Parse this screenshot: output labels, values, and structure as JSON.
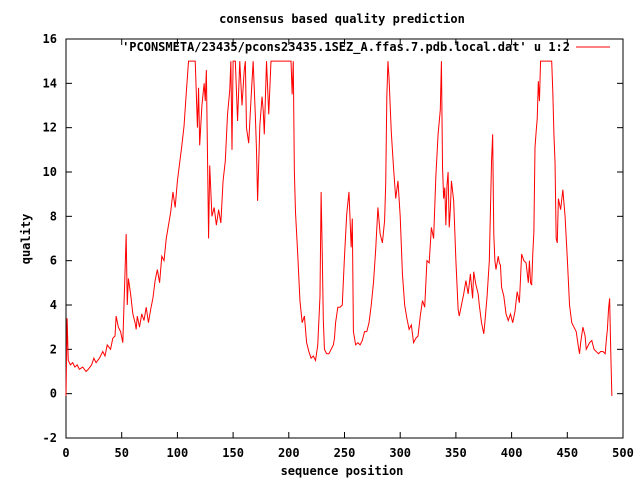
{
  "chart_data": {
    "type": "line",
    "title": "consensus based quality prediction",
    "xlabel": "sequence position",
    "ylabel": "quality",
    "xlim": [
      0,
      500
    ],
    "ylim": [
      -2,
      16
    ],
    "xticks": [
      "0",
      "50",
      "100",
      "150",
      "200",
      "250",
      "300",
      "350",
      "400",
      "450",
      "500"
    ],
    "yticks": [
      "-2",
      "0",
      "2",
      "4",
      "6",
      "8",
      "10",
      "12",
      "14",
      "16"
    ],
    "grid": false,
    "legend_position": "top-right",
    "series": [
      {
        "name": "'PCONSMETA/23435/pcons23435.1SEZ_A.ffas.7.pdb.local.dat' u 1:2",
        "color": "#ff0000",
        "points": [
          [
            0,
            -0.1
          ],
          [
            1,
            3.4
          ],
          [
            2,
            1.5
          ],
          [
            4,
            1.3
          ],
          [
            6,
            1.4
          ],
          [
            8,
            1.2
          ],
          [
            10,
            1.3
          ],
          [
            12,
            1.1
          ],
          [
            15,
            1.2
          ],
          [
            18,
            1.0
          ],
          [
            20,
            1.1
          ],
          [
            23,
            1.3
          ],
          [
            25,
            1.6
          ],
          [
            27,
            1.4
          ],
          [
            30,
            1.6
          ],
          [
            33,
            1.9
          ],
          [
            35,
            1.7
          ],
          [
            37,
            2.2
          ],
          [
            40,
            2.0
          ],
          [
            42,
            2.5
          ],
          [
            44,
            2.6
          ],
          [
            45,
            3.5
          ],
          [
            47,
            3.0
          ],
          [
            49,
            2.8
          ],
          [
            51,
            2.3
          ],
          [
            53,
            5.5
          ],
          [
            54,
            7.2
          ],
          [
            55,
            4.0
          ],
          [
            56,
            5.2
          ],
          [
            58,
            4.5
          ],
          [
            60,
            3.6
          ],
          [
            62,
            3.2
          ],
          [
            63,
            2.9
          ],
          [
            64,
            3.5
          ],
          [
            66,
            3.0
          ],
          [
            68,
            3.6
          ],
          [
            70,
            3.3
          ],
          [
            72,
            3.9
          ],
          [
            74,
            3.2
          ],
          [
            76,
            3.8
          ],
          [
            78,
            4.3
          ],
          [
            80,
            5.1
          ],
          [
            82,
            5.6
          ],
          [
            84,
            5.0
          ],
          [
            86,
            6.2
          ],
          [
            88,
            6.0
          ],
          [
            90,
            7.0
          ],
          [
            92,
            7.6
          ],
          [
            94,
            8.2
          ],
          [
            96,
            9.1
          ],
          [
            98,
            8.4
          ],
          [
            100,
            9.6
          ],
          [
            102,
            10.4
          ],
          [
            104,
            11.2
          ],
          [
            106,
            12.1
          ],
          [
            108,
            13.6
          ],
          [
            110,
            15.0
          ],
          [
            112,
            15.0
          ],
          [
            114,
            15.0
          ],
          [
            116,
            15.0
          ],
          [
            118,
            12.0
          ],
          [
            119,
            13.8
          ],
          [
            120,
            11.2
          ],
          [
            122,
            13.0
          ],
          [
            124,
            14.0
          ],
          [
            125,
            13.2
          ],
          [
            126,
            14.6
          ],
          [
            128,
            7.0
          ],
          [
            129,
            10.3
          ],
          [
            131,
            8.0
          ],
          [
            133,
            8.4
          ],
          [
            135,
            7.6
          ],
          [
            137,
            8.3
          ],
          [
            139,
            7.7
          ],
          [
            141,
            9.6
          ],
          [
            143,
            10.5
          ],
          [
            145,
            12.6
          ],
          [
            147,
            13.7
          ],
          [
            148,
            15.0
          ],
          [
            149,
            11.0
          ],
          [
            150,
            15.0
          ],
          [
            152,
            15.0
          ],
          [
            154,
            12.3
          ],
          [
            156,
            15.0
          ],
          [
            158,
            13.0
          ],
          [
            160,
            14.6
          ],
          [
            161,
            15.0
          ],
          [
            162,
            12.0
          ],
          [
            164,
            11.3
          ],
          [
            166,
            13.2
          ],
          [
            168,
            15.0
          ],
          [
            170,
            12.5
          ],
          [
            171,
            11.0
          ],
          [
            172,
            8.7
          ],
          [
            174,
            12.1
          ],
          [
            176,
            13.4
          ],
          [
            177,
            12.8
          ],
          [
            178,
            11.7
          ],
          [
            180,
            15.0
          ],
          [
            182,
            12.6
          ],
          [
            184,
            15.0
          ],
          [
            186,
            15.0
          ],
          [
            188,
            15.0
          ],
          [
            190,
            15.0
          ],
          [
            192,
            15.0
          ],
          [
            194,
            15.0
          ],
          [
            196,
            15.0
          ],
          [
            198,
            15.0
          ],
          [
            200,
            15.0
          ],
          [
            202,
            15.0
          ],
          [
            203,
            13.5
          ],
          [
            204,
            15.0
          ],
          [
            205,
            10.0
          ],
          [
            206,
            8.2
          ],
          [
            208,
            6.3
          ],
          [
            210,
            4.2
          ],
          [
            212,
            3.2
          ],
          [
            214,
            3.5
          ],
          [
            216,
            2.3
          ],
          [
            218,
            1.9
          ],
          [
            220,
            1.6
          ],
          [
            222,
            1.7
          ],
          [
            224,
            1.5
          ],
          [
            226,
            2.2
          ],
          [
            228,
            4.4
          ],
          [
            229,
            9.1
          ],
          [
            230,
            6.4
          ],
          [
            231,
            3.3
          ],
          [
            232,
            2.0
          ],
          [
            234,
            1.8
          ],
          [
            236,
            1.8
          ],
          [
            238,
            2.0
          ],
          [
            240,
            2.2
          ],
          [
            241,
            2.5
          ],
          [
            242,
            3.2
          ],
          [
            244,
            3.9
          ],
          [
            246,
            3.9
          ],
          [
            248,
            4.0
          ],
          [
            250,
            6.2
          ],
          [
            252,
            8.1
          ],
          [
            254,
            9.1
          ],
          [
            256,
            6.6
          ],
          [
            257,
            7.9
          ],
          [
            258,
            2.8
          ],
          [
            260,
            2.2
          ],
          [
            262,
            2.3
          ],
          [
            264,
            2.2
          ],
          [
            266,
            2.4
          ],
          [
            268,
            2.8
          ],
          [
            270,
            2.8
          ],
          [
            272,
            3.2
          ],
          [
            274,
            4.0
          ],
          [
            276,
            5.0
          ],
          [
            278,
            6.5
          ],
          [
            280,
            8.4
          ],
          [
            282,
            7.2
          ],
          [
            284,
            6.8
          ],
          [
            286,
            7.8
          ],
          [
            287,
            9.5
          ],
          [
            288,
            13.4
          ],
          [
            289,
            15.0
          ],
          [
            290,
            14.2
          ],
          [
            292,
            11.8
          ],
          [
            294,
            10.2
          ],
          [
            296,
            8.8
          ],
          [
            298,
            9.6
          ],
          [
            300,
            8.0
          ],
          [
            302,
            5.4
          ],
          [
            304,
            4.0
          ],
          [
            306,
            3.4
          ],
          [
            308,
            2.9
          ],
          [
            310,
            3.1
          ],
          [
            312,
            2.3
          ],
          [
            314,
            2.5
          ],
          [
            316,
            2.6
          ],
          [
            318,
            3.5
          ],
          [
            320,
            4.2
          ],
          [
            322,
            3.9
          ],
          [
            324,
            6.0
          ],
          [
            326,
            5.9
          ],
          [
            328,
            7.5
          ],
          [
            330,
            7.0
          ],
          [
            332,
            9.8
          ],
          [
            334,
            11.7
          ],
          [
            336,
            12.8
          ],
          [
            337,
            15.0
          ],
          [
            338,
            10.2
          ],
          [
            339,
            8.8
          ],
          [
            340,
            9.3
          ],
          [
            341,
            7.6
          ],
          [
            342,
            9.4
          ],
          [
            343,
            10.0
          ],
          [
            344,
            7.5
          ],
          [
            345,
            8.3
          ],
          [
            346,
            9.6
          ],
          [
            348,
            8.7
          ],
          [
            350,
            6.0
          ],
          [
            352,
            3.8
          ],
          [
            353,
            3.5
          ],
          [
            355,
            4.0
          ],
          [
            357,
            4.5
          ],
          [
            359,
            5.1
          ],
          [
            361,
            4.5
          ],
          [
            363,
            5.4
          ],
          [
            365,
            4.3
          ],
          [
            366,
            5.5
          ],
          [
            368,
            4.9
          ],
          [
            370,
            4.5
          ],
          [
            371,
            4.0
          ],
          [
            373,
            3.2
          ],
          [
            375,
            2.7
          ],
          [
            376,
            3.2
          ],
          [
            378,
            4.4
          ],
          [
            380,
            6.0
          ],
          [
            382,
            10.5
          ],
          [
            383,
            11.7
          ],
          [
            384,
            7.2
          ],
          [
            385,
            6.0
          ],
          [
            386,
            5.6
          ],
          [
            388,
            6.2
          ],
          [
            389,
            5.9
          ],
          [
            390,
            5.8
          ],
          [
            391,
            4.8
          ],
          [
            393,
            4.4
          ],
          [
            395,
            3.6
          ],
          [
            397,
            3.3
          ],
          [
            399,
            3.6
          ],
          [
            401,
            3.2
          ],
          [
            403,
            3.7
          ],
          [
            405,
            4.6
          ],
          [
            407,
            4.1
          ],
          [
            409,
            6.3
          ],
          [
            411,
            6.0
          ],
          [
            413,
            5.9
          ],
          [
            415,
            5.0
          ],
          [
            416,
            6.0
          ],
          [
            417,
            5.0
          ],
          [
            418,
            4.9
          ],
          [
            419,
            6.3
          ],
          [
            420,
            7.3
          ],
          [
            421,
            11.1
          ],
          [
            422,
            11.8
          ],
          [
            423,
            12.4
          ],
          [
            424,
            14.1
          ],
          [
            425,
            13.2
          ],
          [
            426,
            15.0
          ],
          [
            428,
            15.0
          ],
          [
            430,
            15.0
          ],
          [
            432,
            15.0
          ],
          [
            434,
            15.0
          ],
          [
            436,
            15.0
          ],
          [
            437,
            13.6
          ],
          [
            438,
            11.7
          ],
          [
            439,
            10.4
          ],
          [
            440,
            7.0
          ],
          [
            441,
            6.8
          ],
          [
            442,
            8.8
          ],
          [
            444,
            8.3
          ],
          [
            446,
            9.2
          ],
          [
            448,
            8.0
          ],
          [
            450,
            6.1
          ],
          [
            452,
            4.0
          ],
          [
            454,
            3.2
          ],
          [
            456,
            3.0
          ],
          [
            458,
            2.8
          ],
          [
            460,
            2.1
          ],
          [
            461,
            1.8
          ],
          [
            462,
            2.3
          ],
          [
            464,
            3.0
          ],
          [
            466,
            2.6
          ],
          [
            467,
            2.0
          ],
          [
            468,
            2.1
          ],
          [
            470,
            2.3
          ],
          [
            472,
            2.4
          ],
          [
            474,
            2.0
          ],
          [
            476,
            1.9
          ],
          [
            478,
            1.8
          ],
          [
            480,
            1.9
          ],
          [
            482,
            1.9
          ],
          [
            484,
            1.8
          ],
          [
            485,
            2.4
          ],
          [
            486,
            2.9
          ],
          [
            487,
            3.8
          ],
          [
            488,
            4.3
          ],
          [
            489,
            1.9
          ],
          [
            490,
            -0.1
          ]
        ]
      }
    ]
  }
}
